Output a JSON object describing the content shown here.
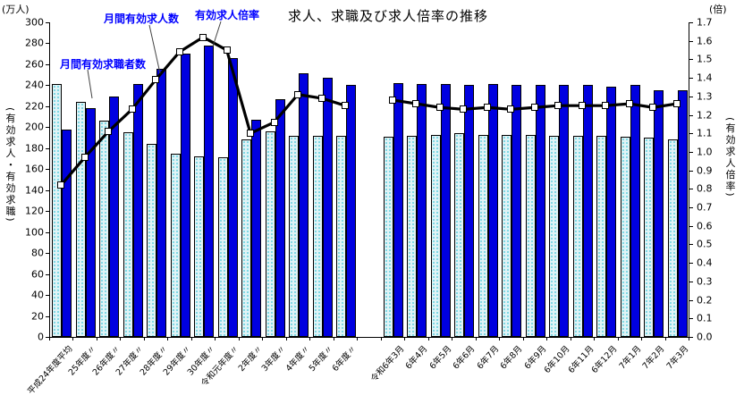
{
  "title": "求人、求職及び求人倍率の推移",
  "axis_left_unit": "(万人)",
  "axis_right_unit": "(倍)",
  "axis_left_label": "(有効求人・有効求職)",
  "axis_right_label": "(有効求人倍率)",
  "annotations": {
    "seekers": "月間有効求職者数",
    "openings": "月間有効求人数",
    "ratio": "有効求人倍率"
  },
  "colors": {
    "openings_bar": "#0000e0",
    "seekers_bar_base": "#dff3f6",
    "seekers_bar_dot": "#7fd8e4",
    "ratio_line": "#000000",
    "annotation_text": "#0000ff",
    "axis": "#000000"
  },
  "chart_data": {
    "type": "bar+line",
    "title": "求人、求職及び求人倍率の推移",
    "left_axis": {
      "label": "有効求人・有効求職",
      "unit": "万人",
      "min": 0,
      "max": 300,
      "step": 20
    },
    "right_axis": {
      "label": "有効求人倍率",
      "unit": "倍",
      "min": 0.0,
      "max": 1.7,
      "step": 0.1
    },
    "slots_total": 27,
    "series_names": {
      "seekers": "月間有効求職者数",
      "openings": "月間有効求人数",
      "ratio": "有効求人倍率"
    },
    "groups": [
      {
        "name": "yearly",
        "slot_start": 0,
        "categories": [
          "平成24年度平均",
          "25年度〃",
          "26年度〃",
          "27年度〃",
          "28年度〃",
          "29年度〃",
          "30年度〃",
          "令和元年度〃",
          "2年度〃",
          "3年度〃",
          "4年度〃",
          "5年度〃",
          "6年度〃"
        ],
        "seekers": [
          241,
          224,
          206,
          195,
          184,
          175,
          172,
          171,
          188,
          196,
          192,
          192,
          192
        ],
        "openings": [
          198,
          218,
          229,
          241,
          256,
          270,
          278,
          266,
          207,
          227,
          251,
          247,
          240
        ],
        "ratio": [
          0.82,
          0.97,
          1.11,
          1.23,
          1.39,
          1.54,
          1.62,
          1.55,
          1.1,
          1.16,
          1.31,
          1.29,
          1.25
        ]
      },
      {
        "name": "monthly",
        "slot_start": 14,
        "categories": [
          "令和6年3月",
          "6年4月",
          "6年5月",
          "6年6月",
          "6年7月",
          "6年8月",
          "6年9月",
          "6年10月",
          "6年11月",
          "6年12月",
          "7年1月",
          "7年2月",
          "7年3月"
        ],
        "seekers": [
          191,
          192,
          193,
          194,
          193,
          193,
          193,
          192,
          192,
          192,
          191,
          190,
          188
        ],
        "openings": [
          242,
          241,
          241,
          240,
          241,
          240,
          240,
          240,
          240,
          239,
          240,
          235,
          235
        ],
        "ratio": [
          1.28,
          1.26,
          1.24,
          1.23,
          1.24,
          1.23,
          1.24,
          1.25,
          1.25,
          1.25,
          1.26,
          1.24,
          1.26
        ]
      }
    ]
  }
}
